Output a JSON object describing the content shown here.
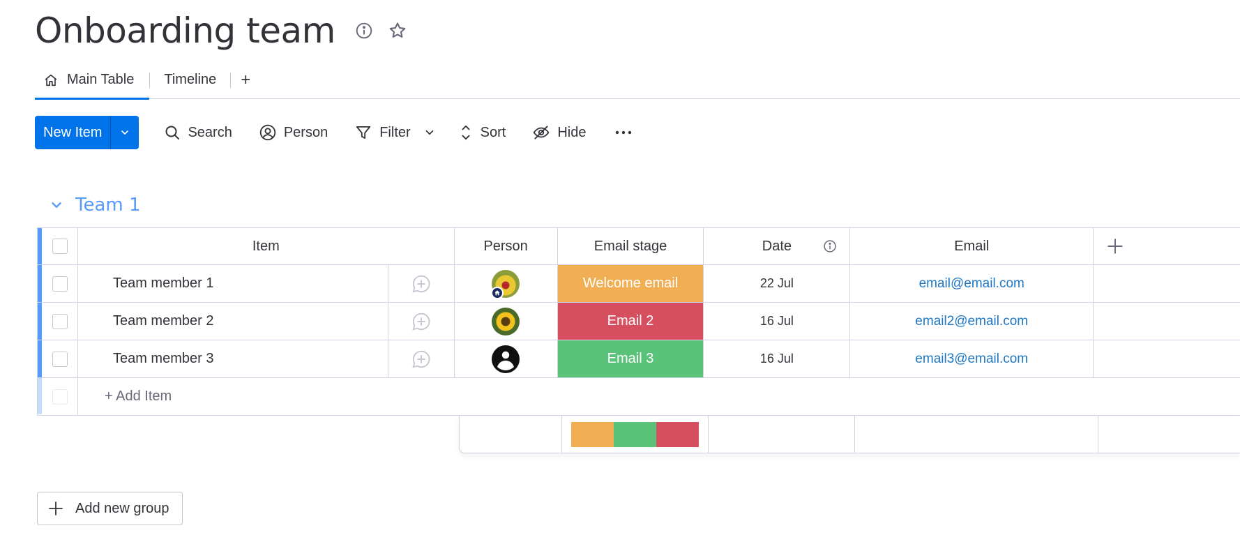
{
  "board": {
    "title": "Onboarding team"
  },
  "tabs": {
    "main": "Main Table",
    "timeline": "Timeline",
    "add": "+"
  },
  "toolbar": {
    "new_item": "New Item",
    "search": "Search",
    "person": "Person",
    "filter": "Filter",
    "sort": "Sort",
    "hide": "Hide"
  },
  "group": {
    "title": "Team 1",
    "color": "#579bfc"
  },
  "columns": {
    "item": "Item",
    "person": "Person",
    "email_stage": "Email stage",
    "date": "Date",
    "email": "Email"
  },
  "rows": [
    {
      "name": "Team member 1",
      "stage": "Welcome email",
      "stage_color": "#f1ae53",
      "date": "22 Jul",
      "email": "email@email.com"
    },
    {
      "name": "Team member 2",
      "stage": "Email 2",
      "stage_color": "#d54f5f",
      "date": "16 Jul",
      "email": "email2@email.com"
    },
    {
      "name": "Team member 3",
      "stage": "Email 3",
      "stage_color": "#5bc27a",
      "date": "16 Jul",
      "email": "email3@email.com"
    }
  ],
  "add_item": "+ Add Item",
  "summary_colors": [
    "#f1ae53",
    "#5bc27a",
    "#d54f5f"
  ],
  "add_group": "Add new group"
}
